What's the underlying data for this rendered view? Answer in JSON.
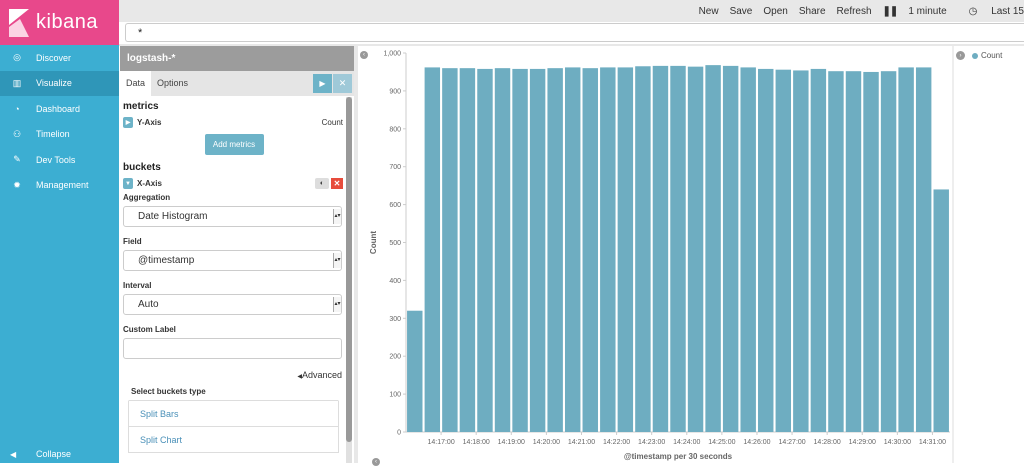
{
  "brand": {
    "name": "kibana"
  },
  "nav": [
    {
      "label": "Discover",
      "icon": "compass-icon",
      "active": false
    },
    {
      "label": "Visualize",
      "icon": "bar-chart-icon",
      "active": true
    },
    {
      "label": "Dashboard",
      "icon": "dashboard-icon",
      "active": false
    },
    {
      "label": "Timelion",
      "icon": "timelion-icon",
      "active": false
    },
    {
      "label": "Dev Tools",
      "icon": "wrench-icon",
      "active": false
    },
    {
      "label": "Management",
      "icon": "gear-icon",
      "active": false
    }
  ],
  "collapse_label": "Collapse",
  "topbar": {
    "new": "New",
    "save": "Save",
    "open": "Open",
    "share": "Share",
    "refresh": "Refresh",
    "interval": "1 minute",
    "time": "Last 15"
  },
  "query": "*",
  "index": "logstash-*",
  "tabs": [
    "Data",
    "Options"
  ],
  "metrics": {
    "title": "metrics",
    "axis": "Y-Axis",
    "agg": "Count",
    "add_button": "Add metrics"
  },
  "buckets": {
    "title": "buckets",
    "axis": "X-Axis",
    "aggregation_label": "Aggregation",
    "aggregation_value": "Date Histogram",
    "field_label": "Field",
    "field_value": "@timestamp",
    "interval_label": "Interval",
    "interval_value": "Auto",
    "custom_label": "Custom Label",
    "custom_value": "",
    "advanced": "Advanced",
    "select_type_title": "Select buckets type",
    "options": [
      "Split Bars",
      "Split Chart"
    ]
  },
  "legend": {
    "series": "Count",
    "color": "#6eadc1"
  },
  "chart_data": {
    "type": "bar",
    "title": "",
    "xlabel": "@timestamp per 30 seconds",
    "ylabel": "Count",
    "ylim": [
      0,
      1000
    ],
    "yticks": [
      "0",
      "100",
      "200",
      "300",
      "400",
      "500",
      "600",
      "700",
      "800",
      "900",
      "1,000"
    ],
    "xticks": [
      "14:17:00",
      "14:18:00",
      "14:19:00",
      "14:20:00",
      "14:21:00",
      "14:22:00",
      "14:23:00",
      "14:24:00",
      "14:25:00",
      "14:26:00",
      "14:27:00",
      "14:28:00",
      "14:29:00",
      "14:30:00",
      "14:31:00"
    ],
    "series": [
      {
        "name": "Count",
        "values": [
          320,
          962,
          960,
          960,
          958,
          960,
          958,
          958,
          960,
          962,
          960,
          962,
          962,
          965,
          966,
          966,
          964,
          968,
          966,
          962,
          958,
          956,
          954,
          958,
          952,
          952,
          950,
          952,
          962,
          962,
          640
        ]
      }
    ]
  }
}
